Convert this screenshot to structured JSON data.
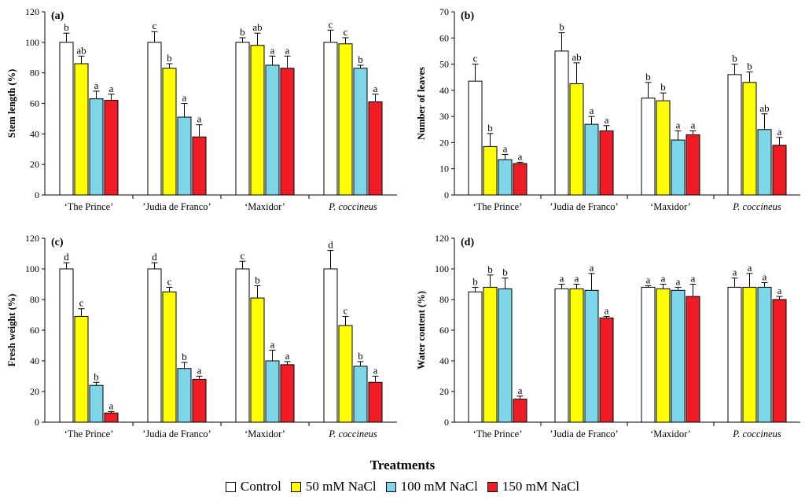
{
  "figure": {
    "xlabel": "Treatments",
    "legend": [
      {
        "name": "Control",
        "color": "#ffffff"
      },
      {
        "name": "50 mM NaCl",
        "color": "#ffff00"
      },
      {
        "name": "100 mM NaCl",
        "color": "#7dd7e8"
      },
      {
        "name": "150 mM NaCl",
        "color": "#ee1c24"
      }
    ]
  },
  "chart_data": [
    {
      "type": "bar",
      "panel": "(a)",
      "ylabel": "Stem length (%)",
      "ylim": [
        0,
        120
      ],
      "yticks": [
        0,
        20,
        40,
        60,
        80,
        100,
        120
      ],
      "categories": [
        "‘The Prince’",
        "’Judia de Franco’",
        "‘Maxidor’",
        "P. coccineus"
      ],
      "series": [
        {
          "name": "Control",
          "values": [
            100,
            100,
            100,
            100
          ],
          "errors": [
            6,
            7,
            3,
            8
          ],
          "letters": [
            "b",
            "c",
            "b",
            "c"
          ]
        },
        {
          "name": "50 mM NaCl",
          "values": [
            86,
            83,
            98,
            99
          ],
          "errors": [
            5,
            3,
            8,
            4
          ],
          "letters": [
            "ab",
            "b",
            "ab",
            "c"
          ]
        },
        {
          "name": "100 mM NaCl",
          "values": [
            63,
            51,
            85,
            83
          ],
          "errors": [
            5,
            9,
            6,
            2
          ],
          "letters": [
            "a",
            "a",
            "a",
            "b"
          ]
        },
        {
          "name": "150 mM NaCl",
          "values": [
            62,
            38,
            83,
            61
          ],
          "errors": [
            4,
            8,
            8,
            5
          ],
          "letters": [
            "a",
            "a",
            "a",
            "a"
          ]
        }
      ]
    },
    {
      "type": "bar",
      "panel": "(b)",
      "ylabel": "Number of leaves",
      "ylim": [
        0,
        70
      ],
      "yticks": [
        0,
        10,
        20,
        30,
        40,
        50,
        60,
        70
      ],
      "categories": [
        "‘The Prince’",
        "’Judia de Franco’",
        "‘Maxidor’",
        "P. coccineus"
      ],
      "series": [
        {
          "name": "Control",
          "values": [
            43.5,
            55,
            37,
            46
          ],
          "errors": [
            6.5,
            7,
            6,
            4
          ],
          "letters": [
            "c",
            "b",
            "b",
            "b"
          ]
        },
        {
          "name": "50 mM NaCl",
          "values": [
            18.5,
            42.5,
            36,
            43
          ],
          "errors": [
            5,
            8,
            3,
            4
          ],
          "letters": [
            "b",
            "ab",
            "b",
            "b"
          ]
        },
        {
          "name": "100 mM NaCl",
          "values": [
            13.5,
            27,
            21,
            25
          ],
          "errors": [
            2,
            3,
            3.5,
            6
          ],
          "letters": [
            "a",
            "a",
            "a",
            "ab"
          ]
        },
        {
          "name": "150 mM NaCl",
          "values": [
            12,
            24.5,
            23,
            19
          ],
          "errors": [
            0.5,
            2,
            1.5,
            3
          ],
          "letters": [
            "a",
            "a",
            "a",
            "a"
          ]
        }
      ]
    },
    {
      "type": "bar",
      "panel": "(c)",
      "ylabel": "Fresh weight (%)",
      "ylim": [
        0,
        120
      ],
      "yticks": [
        0,
        20,
        40,
        60,
        80,
        100,
        120
      ],
      "categories": [
        "‘The Prince’",
        "’Judia de Franco’",
        "‘Maxidor’",
        "P. coccineus"
      ],
      "series": [
        {
          "name": "Control",
          "values": [
            100,
            100,
            100,
            100
          ],
          "errors": [
            4,
            4,
            5,
            12
          ],
          "letters": [
            "d",
            "d",
            "c",
            "d"
          ]
        },
        {
          "name": "50 mM NaCl",
          "values": [
            69,
            85,
            81,
            63
          ],
          "errors": [
            5,
            3,
            8,
            6
          ],
          "letters": [
            "c",
            "c",
            "b",
            "c"
          ]
        },
        {
          "name": "100 mM NaCl",
          "values": [
            24,
            35,
            40,
            36.5
          ],
          "errors": [
            2,
            4,
            7,
            3
          ],
          "letters": [
            "b",
            "b",
            "a",
            "b"
          ]
        },
        {
          "name": "150 mM NaCl",
          "values": [
            6,
            28,
            37.5,
            26
          ],
          "errors": [
            1,
            2,
            2,
            4
          ],
          "letters": [
            "a",
            "a",
            "a",
            "a"
          ]
        }
      ]
    },
    {
      "type": "bar",
      "panel": "(d)",
      "ylabel": "Water content (%)",
      "ylim": [
        0,
        120
      ],
      "yticks": [
        0,
        20,
        40,
        60,
        80,
        100,
        120
      ],
      "categories": [
        "‘The Prince’",
        "’Judia de Franco’",
        "‘Maxidor’",
        "P. coccineus"
      ],
      "series": [
        {
          "name": "Control",
          "values": [
            85,
            87,
            88,
            88
          ],
          "errors": [
            3,
            3,
            1,
            6
          ],
          "letters": [
            "b",
            "a",
            "a",
            "a"
          ]
        },
        {
          "name": "50 mM NaCl",
          "values": [
            88,
            87,
            87,
            88
          ],
          "errors": [
            8,
            3,
            3,
            9
          ],
          "letters": [
            "b",
            "a",
            "a",
            "a"
          ]
        },
        {
          "name": "100 mM NaCl",
          "values": [
            87,
            86,
            86,
            88
          ],
          "errors": [
            7,
            11,
            2,
            3
          ],
          "letters": [
            "b",
            "a",
            "a",
            "a"
          ]
        },
        {
          "name": "150 mM NaCl",
          "values": [
            15,
            68,
            82,
            80
          ],
          "errors": [
            2,
            1,
            8,
            2
          ],
          "letters": [
            "a",
            "a",
            "a",
            "a"
          ]
        }
      ]
    }
  ]
}
